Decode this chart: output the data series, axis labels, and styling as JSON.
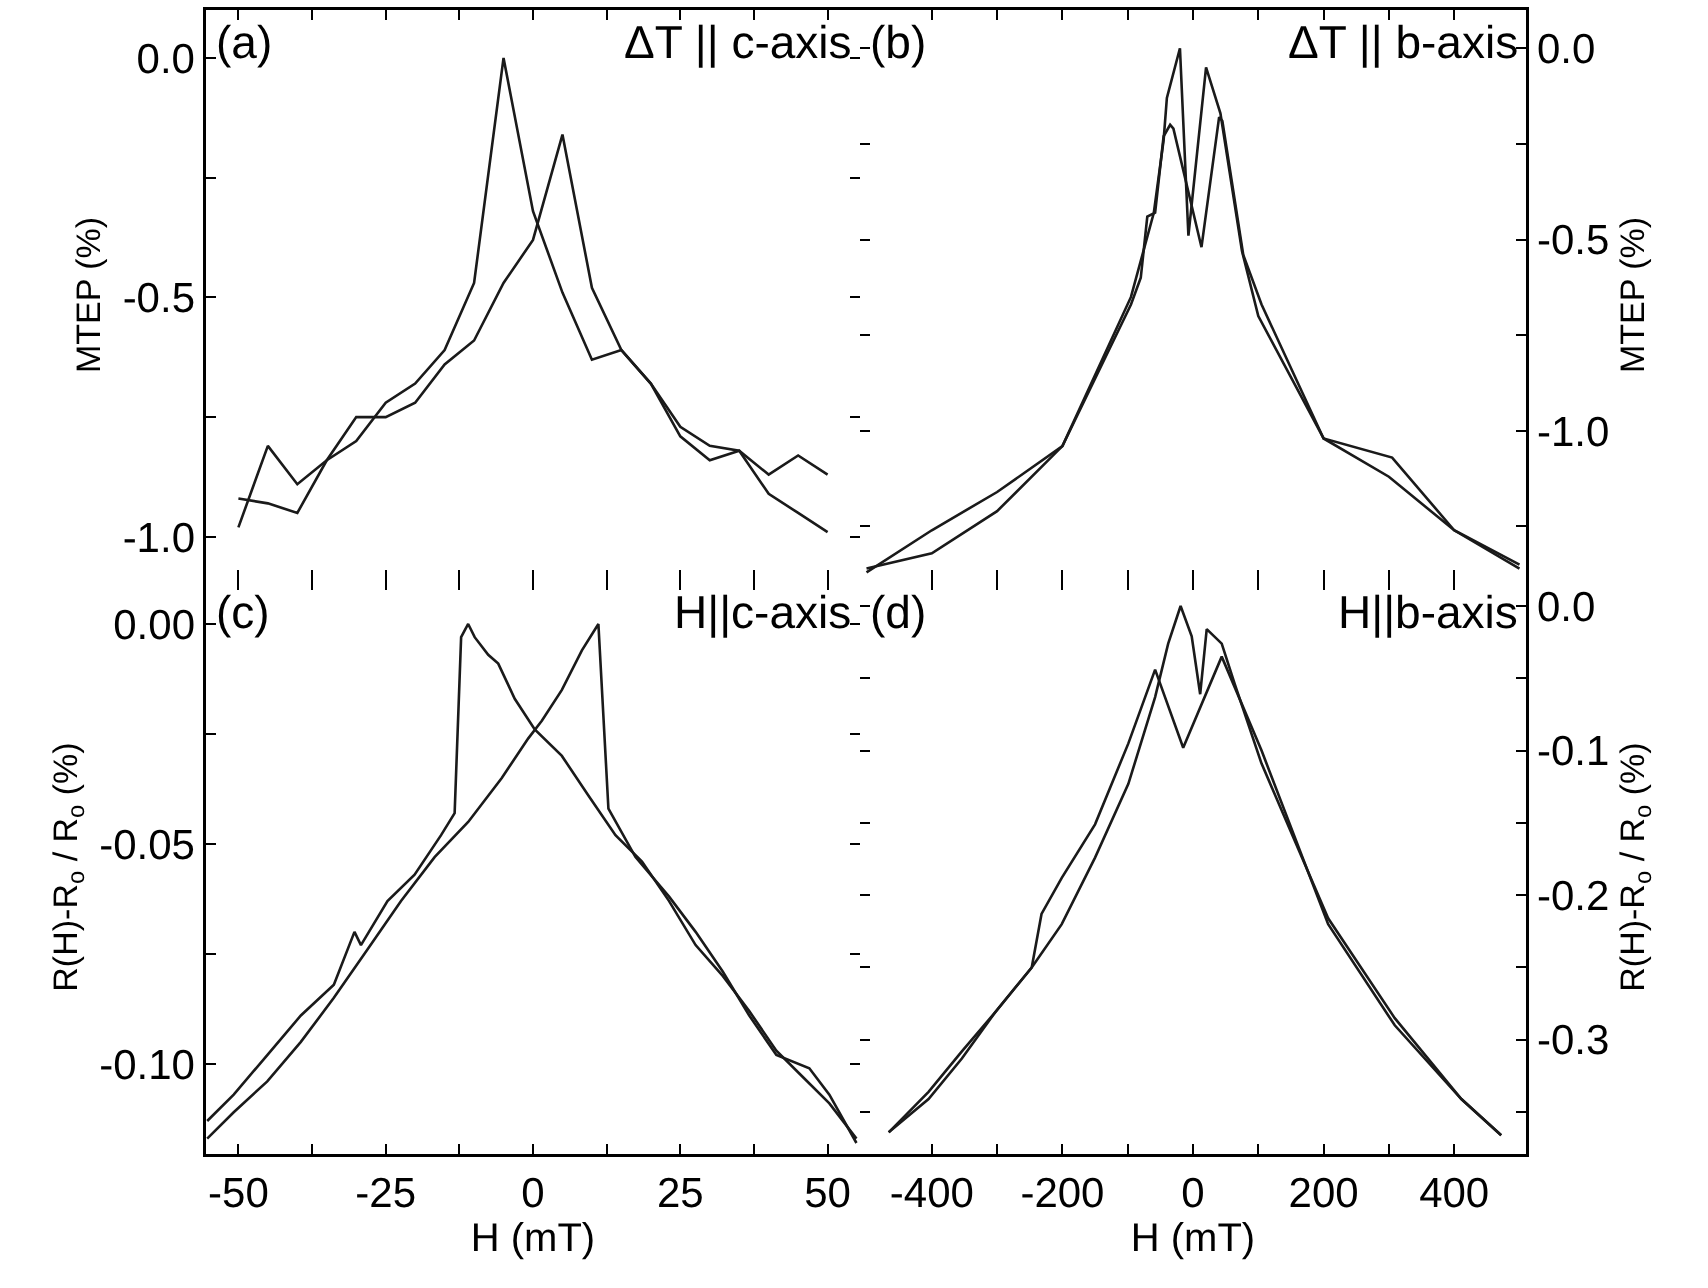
{
  "chart_data": [
    {
      "type": "line",
      "annotations": [
        "(a)",
        "ΔT || c-axis"
      ],
      "ylabel": "MTEP (%)",
      "xlim": [
        -55.5,
        55.5
      ],
      "xticks": [
        {
          "value": -50,
          "label": null
        },
        {
          "value": -37.5,
          "label": null
        },
        {
          "value": -25,
          "label": null
        },
        {
          "value": -12.5,
          "label": null
        },
        {
          "value": 0,
          "label": null
        },
        {
          "value": 12.5,
          "label": null
        },
        {
          "value": 25,
          "label": null
        },
        {
          "value": 37.5,
          "label": null
        },
        {
          "value": 50,
          "label": null
        }
      ],
      "ylim": [
        -1.09,
        0.1
      ],
      "yticks": [
        {
          "value": -1,
          "label": "-1.0"
        },
        {
          "value": -0.75,
          "label": null
        },
        {
          "value": -0.5,
          "label": "-0.5"
        },
        {
          "value": -0.25,
          "label": null
        },
        {
          "value": 0,
          "label": "0.0"
        }
      ],
      "tick_labels": "y",
      "marker": "none",
      "line_style": "solid",
      "series": [
        {
          "color": "#1a1a1a",
          "x": [
            -50,
            -45,
            -40,
            -35,
            -30,
            -25,
            -20,
            -15,
            -10,
            -5,
            0,
            5,
            10,
            15,
            20,
            25,
            30,
            35,
            40,
            45,
            50
          ],
          "values": [
            -0.98,
            -0.81,
            -0.89,
            -0.84,
            -0.8,
            -0.72,
            -0.68,
            -0.61,
            -0.47,
            0.0,
            -0.32,
            -0.49,
            -0.63,
            -0.61,
            -0.68,
            -0.79,
            -0.84,
            -0.82,
            -0.87,
            -0.83,
            -0.87
          ]
        },
        {
          "color": "#1a1a1a",
          "x": [
            -50,
            -45,
            -40,
            -35,
            -30,
            -25,
            -20,
            -15,
            -10,
            -5,
            0,
            5,
            10,
            15,
            20,
            25,
            30,
            35,
            40,
            45,
            50
          ],
          "values": [
            -0.92,
            -0.93,
            -0.95,
            -0.84,
            -0.75,
            -0.75,
            -0.72,
            -0.64,
            -0.59,
            -0.47,
            -0.38,
            -0.16,
            -0.48,
            -0.61,
            -0.68,
            -0.77,
            -0.81,
            -0.82,
            -0.91,
            -0.95,
            -0.99
          ]
        }
      ]
    },
    {
      "type": "line",
      "annotations": [
        "(b)",
        "ΔT || b-axis"
      ],
      "ylabel": "MTEP (%)",
      "xlim": [
        -510,
        510
      ],
      "xticks": [
        {
          "value": -400,
          "label": null
        },
        {
          "value": -300,
          "label": null
        },
        {
          "value": -200,
          "label": null
        },
        {
          "value": -100,
          "label": null
        },
        {
          "value": 0,
          "label": null
        },
        {
          "value": 100,
          "label": null
        },
        {
          "value": 200,
          "label": null
        },
        {
          "value": 300,
          "label": null
        },
        {
          "value": 400,
          "label": null
        }
      ],
      "ylim": [
        -1.39,
        0.1
      ],
      "yticks": [
        {
          "value": -1.25,
          "label": null
        },
        {
          "value": -1,
          "label": "-1.0"
        },
        {
          "value": -0.75,
          "label": null
        },
        {
          "value": -0.5,
          "label": "-0.5"
        },
        {
          "value": -0.25,
          "label": null
        },
        {
          "value": 0,
          "label": "0.0"
        }
      ],
      "tick_labels": "y",
      "marker": "none",
      "line_style": "solid",
      "series": [
        {
          "color": "#1a1a1a",
          "x": [
            -500,
            -400,
            -300,
            -200,
            -95,
            -60,
            -45,
            -40,
            -20,
            -7,
            20,
            42,
            75,
            100,
            200,
            305,
            400,
            500
          ],
          "values": [
            -1.37,
            -1.26,
            -1.16,
            -1.04,
            -0.65,
            -0.43,
            -0.24,
            -0.13,
            0.0,
            -0.49,
            -0.05,
            -0.17,
            -0.53,
            -0.7,
            -1.02,
            -1.07,
            -1.26,
            -1.35
          ]
        },
        {
          "color": "#1a1a1a",
          "x": [
            -500,
            -400,
            -300,
            -200,
            -95,
            -80,
            -70,
            -58,
            -45,
            -35,
            -30,
            13,
            40,
            45,
            77,
            105,
            200,
            300,
            400,
            500
          ],
          "values": [
            -1.36,
            -1.32,
            -1.21,
            -1.04,
            -0.67,
            -0.6,
            -0.44,
            -0.43,
            -0.23,
            -0.2,
            -0.21,
            -0.52,
            -0.18,
            -0.19,
            -0.54,
            -0.67,
            -1.02,
            -1.12,
            -1.26,
            -1.36
          ]
        }
      ]
    },
    {
      "type": "line",
      "annotations": [
        "(c)",
        "H||c-axis"
      ],
      "xlabel": "H (mT)",
      "ylabel": "R(H)-R$_{o}$ / R$_{o}$ (%)",
      "xlim": [
        -55.5,
        55.5
      ],
      "xticks": [
        -50,
        {
          "value": -37.5,
          "label": null
        },
        -25,
        {
          "value": -12.5,
          "label": null
        },
        0,
        {
          "value": 12.5,
          "label": null
        },
        25,
        {
          "value": 37.5,
          "label": null
        },
        50
      ],
      "ylim": [
        -0.1205,
        0.01
      ],
      "yticks": [
        {
          "value": -0.1,
          "label": "-0.10"
        },
        {
          "value": -0.075,
          "label": null
        },
        {
          "value": -0.05,
          "label": "-0.05"
        },
        {
          "value": -0.025,
          "label": null
        },
        {
          "value": 0,
          "label": "0.00"
        }
      ],
      "marker": "none",
      "line_style": "solid",
      "series": [
        {
          "color": "#1a1a1a",
          "x": [
            -55.3,
            -50.8,
            -45.1,
            -39.4,
            -33.8,
            -30.3,
            -29.2,
            -24.7,
            -20.1,
            -15.6,
            -13.3,
            -12.2,
            -11.0,
            -9.9,
            -7.6,
            -5.9,
            -3.1,
            0.3,
            4.9,
            9.4,
            14.0,
            18.5,
            23.1,
            27.6,
            32.2,
            36.7,
            41.3,
            45.8,
            50.3,
            54.9
          ],
          "values": [
            -0.113,
            -0.107,
            -0.098,
            -0.089,
            -0.082,
            -0.07,
            -0.073,
            -0.063,
            -0.057,
            -0.048,
            -0.043,
            -0.003,
            0.0,
            -0.003,
            -0.007,
            -0.009,
            -0.017,
            -0.024,
            -0.03,
            -0.039,
            -0.048,
            -0.054,
            -0.063,
            -0.073,
            -0.08,
            -0.088,
            -0.097,
            -0.103,
            -0.109,
            -0.117
          ]
        },
        {
          "color": "#1a1a1a",
          "x": [
            -55.3,
            -50.8,
            -45.1,
            -39.4,
            -33.8,
            -28.1,
            -22.4,
            -16.7,
            -11.0,
            -5.3,
            -0.8,
            1.5,
            4.9,
            8.3,
            11.1,
            12.8,
            17.4,
            23.1,
            27.6,
            32.2,
            36.7,
            41.3,
            46.9,
            50.3,
            54.9
          ],
          "values": [
            -0.117,
            -0.111,
            -0.104,
            -0.095,
            -0.085,
            -0.074,
            -0.063,
            -0.053,
            -0.045,
            -0.035,
            -0.026,
            -0.022,
            -0.015,
            -0.006,
            0.0,
            -0.042,
            -0.053,
            -0.062,
            -0.07,
            -0.079,
            -0.089,
            -0.098,
            -0.101,
            -0.107,
            -0.118
          ]
        }
      ]
    },
    {
      "type": "line",
      "annotations": [
        "(d)",
        "H||b-axis"
      ],
      "xlabel": "H (mT)",
      "ylabel": "R(H)-R$_{o}$ / R$_{o}$ (%)",
      "xlim": [
        -510,
        510
      ],
      "xticks": [
        -400,
        {
          "value": -300,
          "label": null
        },
        -200,
        {
          "value": -100,
          "label": null
        },
        0,
        {
          "value": 100,
          "label": null
        },
        200,
        {
          "value": 300,
          "label": null
        },
        400
      ],
      "ylim": [
        -0.379,
        0.018
      ],
      "yticks": [
        {
          "value": -0.35,
          "label": null
        },
        {
          "value": -0.3,
          "label": "-0.3"
        },
        {
          "value": -0.25,
          "label": null
        },
        {
          "value": -0.2,
          "label": "-0.2"
        },
        {
          "value": -0.15,
          "label": null
        },
        {
          "value": -0.1,
          "label": "-0.1"
        },
        {
          "value": -0.05,
          "label": null
        },
        {
          "value": 0,
          "label": "0.0"
        }
      ],
      "marker": "none",
      "line_style": "solid",
      "series": [
        {
          "color": "#1a1a1a",
          "x": [
            -466,
            -405,
            -354,
            -303,
            -247,
            -232,
            -201,
            -150,
            -99,
            -58,
            -15,
            44,
            105,
            207,
            309,
            411,
            472
          ],
          "values": [
            -0.364,
            -0.336,
            -0.308,
            -0.281,
            -0.25,
            -0.213,
            -0.188,
            -0.151,
            -0.095,
            -0.044,
            -0.098,
            -0.035,
            -0.1,
            -0.22,
            -0.29,
            -0.341,
            -0.366
          ]
        },
        {
          "color": "#1a1a1a",
          "x": [
            -466,
            -405,
            -354,
            -303,
            -247,
            -201,
            -150,
            -99,
            -58,
            -38,
            -19,
            -2,
            11,
            21,
            44,
            64,
            105,
            207,
            309,
            411,
            472
          ],
          "values": [
            -0.364,
            -0.341,
            -0.313,
            -0.281,
            -0.25,
            -0.22,
            -0.174,
            -0.123,
            -0.063,
            -0.026,
            0.0,
            -0.021,
            -0.061,
            -0.016,
            -0.026,
            -0.054,
            -0.109,
            -0.216,
            -0.285,
            -0.341,
            -0.366
          ]
        }
      ]
    }
  ]
}
